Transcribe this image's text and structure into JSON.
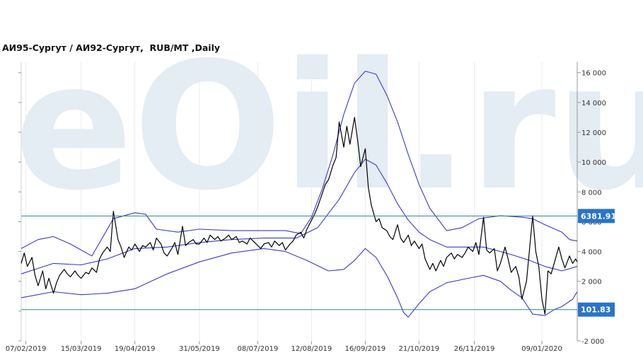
{
  "chart_data": {
    "type": "line",
    "title": "АИ95-Сургут / АИ92-Сургут,  RUB/MT ,Daily",
    "watermark": "eOil.ru",
    "x_ticks": [
      "07/02/2019",
      "15/03/2019",
      "19/04/2019",
      "31/05/2019",
      "08/07/2019",
      "12/08/2019",
      "16/09/2019",
      "21/10/2019",
      "26/11/2019",
      "09/01/2020"
    ],
    "y_ticks": [
      16000,
      14000,
      12000,
      10000,
      8000,
      6000,
      4000,
      2000,
      0,
      -2000
    ],
    "y_tick_labels": [
      "16 000",
      "14 000",
      "12 000",
      "10 000",
      "8 000",
      "6 000",
      "4 000",
      "2 000",
      "0",
      "-2 000"
    ],
    "ylim": [
      -2000,
      16700
    ],
    "x_range": [
      "2019-02-04",
      "2020-02-01"
    ],
    "reference_lines": [
      {
        "label": "6381.91",
        "value": 6381.91
      },
      {
        "label": "101.83",
        "value": 101.83
      }
    ],
    "colors": {
      "spread": "#000000",
      "bands": "#3a3acc",
      "reference": "#2a8a84",
      "badge": "#2a74c8",
      "watermark": "#e4ecf4"
    },
    "series": [
      {
        "key": "spread",
        "points": [
          [
            "2019-02-04",
            3200
          ],
          [
            "2019-02-06",
            3900
          ],
          [
            "2019-02-08",
            3000
          ],
          [
            "2019-02-11",
            3600
          ],
          [
            "2019-02-13",
            2400
          ],
          [
            "2019-02-15",
            1700
          ],
          [
            "2019-02-18",
            2700
          ],
          [
            "2019-02-20",
            1500
          ],
          [
            "2019-02-22",
            2200
          ],
          [
            "2019-02-25",
            1200
          ],
          [
            "2019-02-27",
            1900
          ],
          [
            "2019-03-01",
            2400
          ],
          [
            "2019-03-04",
            2800
          ],
          [
            "2019-03-06",
            2500
          ],
          [
            "2019-03-08",
            2300
          ],
          [
            "2019-03-11",
            2700
          ],
          [
            "2019-03-13",
            2400
          ],
          [
            "2019-03-15",
            2200
          ],
          [
            "2019-03-18",
            2600
          ],
          [
            "2019-03-20",
            2500
          ],
          [
            "2019-03-22",
            2900
          ],
          [
            "2019-03-25",
            2600
          ],
          [
            "2019-03-27",
            3500
          ],
          [
            "2019-03-29",
            3900
          ],
          [
            "2019-04-01",
            4300
          ],
          [
            "2019-04-03",
            4000
          ],
          [
            "2019-04-05",
            6700
          ],
          [
            "2019-04-08",
            4800
          ],
          [
            "2019-04-10",
            4300
          ],
          [
            "2019-04-12",
            3600
          ],
          [
            "2019-04-15",
            4300
          ],
          [
            "2019-04-17",
            4100
          ],
          [
            "2019-04-19",
            4500
          ],
          [
            "2019-04-22",
            4000
          ],
          [
            "2019-04-24",
            4400
          ],
          [
            "2019-04-26",
            4300
          ],
          [
            "2019-04-29",
            4600
          ],
          [
            "2019-05-01",
            4100
          ],
          [
            "2019-05-03",
            4900
          ],
          [
            "2019-05-06",
            4500
          ],
          [
            "2019-05-08",
            3900
          ],
          [
            "2019-05-10",
            3700
          ],
          [
            "2019-05-13",
            4200
          ],
          [
            "2019-05-15",
            4600
          ],
          [
            "2019-05-17",
            3800
          ],
          [
            "2019-05-20",
            5700
          ],
          [
            "2019-05-22",
            4400
          ],
          [
            "2019-05-24",
            4600
          ],
          [
            "2019-05-27",
            4800
          ],
          [
            "2019-05-29",
            4500
          ],
          [
            "2019-05-31",
            4500
          ],
          [
            "2019-06-03",
            4900
          ],
          [
            "2019-06-05",
            4600
          ],
          [
            "2019-06-07",
            5100
          ],
          [
            "2019-06-10",
            4800
          ],
          [
            "2019-06-12",
            5000
          ],
          [
            "2019-06-14",
            4700
          ],
          [
            "2019-06-17",
            4900
          ],
          [
            "2019-06-19",
            5100
          ],
          [
            "2019-06-21",
            4800
          ],
          [
            "2019-06-24",
            5000
          ],
          [
            "2019-06-26",
            4600
          ],
          [
            "2019-06-28",
            4700
          ],
          [
            "2019-07-01",
            4500
          ],
          [
            "2019-07-03",
            4900
          ],
          [
            "2019-07-05",
            4700
          ],
          [
            "2019-07-08",
            4400
          ],
          [
            "2019-07-10",
            4200
          ],
          [
            "2019-07-12",
            4500
          ],
          [
            "2019-07-15",
            4600
          ],
          [
            "2019-07-17",
            4300
          ],
          [
            "2019-07-19",
            4700
          ],
          [
            "2019-07-22",
            4400
          ],
          [
            "2019-07-24",
            4600
          ],
          [
            "2019-07-26",
            4100
          ],
          [
            "2019-07-29",
            4500
          ],
          [
            "2019-07-31",
            4700
          ],
          [
            "2019-08-02",
            5100
          ],
          [
            "2019-08-05",
            5300
          ],
          [
            "2019-08-07",
            4900
          ],
          [
            "2019-08-09",
            5500
          ],
          [
            "2019-08-12",
            6100
          ],
          [
            "2019-08-14",
            6500
          ],
          [
            "2019-08-16",
            7000
          ],
          [
            "2019-08-19",
            7900
          ],
          [
            "2019-08-21",
            8500
          ],
          [
            "2019-08-23",
            8800
          ],
          [
            "2019-08-26",
            9800
          ],
          [
            "2019-08-28",
            10300
          ],
          [
            "2019-08-30",
            12700
          ],
          [
            "2019-09-02",
            11000
          ],
          [
            "2019-09-04",
            12400
          ],
          [
            "2019-09-06",
            11200
          ],
          [
            "2019-09-09",
            13000
          ],
          [
            "2019-09-11",
            11500
          ],
          [
            "2019-09-13",
            9700
          ],
          [
            "2019-09-16",
            10900
          ],
          [
            "2019-09-18",
            8300
          ],
          [
            "2019-09-20",
            7100
          ],
          [
            "2019-09-23",
            6000
          ],
          [
            "2019-09-25",
            6200
          ],
          [
            "2019-09-27",
            5600
          ],
          [
            "2019-09-30",
            5400
          ],
          [
            "2019-10-02",
            5000
          ],
          [
            "2019-10-04",
            4800
          ],
          [
            "2019-10-07",
            5800
          ],
          [
            "2019-10-09",
            4900
          ],
          [
            "2019-10-11",
            4600
          ],
          [
            "2019-10-14",
            5100
          ],
          [
            "2019-10-16",
            4400
          ],
          [
            "2019-10-18",
            4700
          ],
          [
            "2019-10-21",
            4200
          ],
          [
            "2019-10-23",
            4500
          ],
          [
            "2019-10-25",
            3500
          ],
          [
            "2019-10-28",
            2800
          ],
          [
            "2019-10-30",
            3200
          ],
          [
            "2019-11-01",
            2700
          ],
          [
            "2019-11-04",
            3400
          ],
          [
            "2019-11-06",
            3000
          ],
          [
            "2019-11-08",
            3600
          ],
          [
            "2019-11-11",
            3900
          ],
          [
            "2019-11-13",
            3500
          ],
          [
            "2019-11-15",
            3800
          ],
          [
            "2019-11-18",
            3600
          ],
          [
            "2019-11-20",
            3900
          ],
          [
            "2019-11-22",
            4300
          ],
          [
            "2019-11-25",
            4000
          ],
          [
            "2019-11-27",
            4600
          ],
          [
            "2019-11-29",
            3800
          ],
          [
            "2019-12-02",
            6300
          ],
          [
            "2019-12-04",
            4100
          ],
          [
            "2019-12-06",
            3900
          ],
          [
            "2019-12-09",
            4200
          ],
          [
            "2019-12-11",
            2700
          ],
          [
            "2019-12-13",
            3200
          ],
          [
            "2019-12-16",
            4300
          ],
          [
            "2019-12-18",
            3500
          ],
          [
            "2019-12-20",
            2600
          ],
          [
            "2019-12-23",
            3000
          ],
          [
            "2019-12-25",
            2300
          ],
          [
            "2019-12-27",
            800
          ],
          [
            "2019-12-30",
            2000
          ],
          [
            "2020-01-01",
            4200
          ],
          [
            "2020-01-03",
            6400
          ],
          [
            "2020-01-05",
            4000
          ],
          [
            "2020-01-07",
            3000
          ],
          [
            "2020-01-09",
            800
          ],
          [
            "2020-01-11",
            -200
          ],
          [
            "2020-01-13",
            2700
          ],
          [
            "2020-01-15",
            2500
          ],
          [
            "2020-01-17",
            3200
          ],
          [
            "2020-01-20",
            4300
          ],
          [
            "2020-01-22",
            3500
          ],
          [
            "2020-01-24",
            2900
          ],
          [
            "2020-01-27",
            3700
          ],
          [
            "2020-01-29",
            3200
          ],
          [
            "2020-01-31",
            3500
          ],
          [
            "2020-02-01",
            3300
          ]
        ]
      },
      {
        "key": "middle-band",
        "points": [
          [
            "2019-02-04",
            2500
          ],
          [
            "2019-02-25",
            3200
          ],
          [
            "2019-03-15",
            3100
          ],
          [
            "2019-04-01",
            3500
          ],
          [
            "2019-04-19",
            4200
          ],
          [
            "2019-05-10",
            4300
          ],
          [
            "2019-05-31",
            4600
          ],
          [
            "2019-06-21",
            4800
          ],
          [
            "2019-07-12",
            4900
          ],
          [
            "2019-08-02",
            4900
          ],
          [
            "2019-08-16",
            5600
          ],
          [
            "2019-08-30",
            7500
          ],
          [
            "2019-09-09",
            9300
          ],
          [
            "2019-09-16",
            10200
          ],
          [
            "2019-09-23",
            9800
          ],
          [
            "2019-09-30",
            8600
          ],
          [
            "2019-10-07",
            7200
          ],
          [
            "2019-10-14",
            6100
          ],
          [
            "2019-10-21",
            5300
          ],
          [
            "2019-10-28",
            4800
          ],
          [
            "2019-11-08",
            4300
          ],
          [
            "2019-11-22",
            4300
          ],
          [
            "2019-12-02",
            4300
          ],
          [
            "2019-12-13",
            4000
          ],
          [
            "2019-12-23",
            3700
          ],
          [
            "2020-01-01",
            3400
          ],
          [
            "2020-01-11",
            3000
          ],
          [
            "2020-01-22",
            2700
          ],
          [
            "2020-02-01",
            3000
          ]
        ]
      },
      {
        "key": "upper-band",
        "points": [
          [
            "2019-02-04",
            4200
          ],
          [
            "2019-02-15",
            4800
          ],
          [
            "2019-02-25",
            5000
          ],
          [
            "2019-03-08",
            4500
          ],
          [
            "2019-03-22",
            3700
          ],
          [
            "2019-04-05",
            6200
          ],
          [
            "2019-04-19",
            6600
          ],
          [
            "2019-04-26",
            6500
          ],
          [
            "2019-05-03",
            5500
          ],
          [
            "2019-05-17",
            5300
          ],
          [
            "2019-05-31",
            5500
          ],
          [
            "2019-06-21",
            5400
          ],
          [
            "2019-07-12",
            5400
          ],
          [
            "2019-07-26",
            5400
          ],
          [
            "2019-08-05",
            5200
          ],
          [
            "2019-08-12",
            6300
          ],
          [
            "2019-08-19",
            8200
          ],
          [
            "2019-08-26",
            10500
          ],
          [
            "2019-09-02",
            13200
          ],
          [
            "2019-09-09",
            15300
          ],
          [
            "2019-09-16",
            16100
          ],
          [
            "2019-09-23",
            15900
          ],
          [
            "2019-09-30",
            14500
          ],
          [
            "2019-10-07",
            12700
          ],
          [
            "2019-10-14",
            10500
          ],
          [
            "2019-10-21",
            8500
          ],
          [
            "2019-10-28",
            6900
          ],
          [
            "2019-11-08",
            5400
          ],
          [
            "2019-11-18",
            5600
          ],
          [
            "2019-11-29",
            6200
          ],
          [
            "2019-12-13",
            6400
          ],
          [
            "2019-12-27",
            6300
          ],
          [
            "2020-01-03",
            6200
          ],
          [
            "2020-01-11",
            5800
          ],
          [
            "2020-01-22",
            5300
          ],
          [
            "2020-01-27",
            4800
          ],
          [
            "2020-02-01",
            4700
          ]
        ]
      },
      {
        "key": "lower-band",
        "points": [
          [
            "2019-02-04",
            900
          ],
          [
            "2019-02-25",
            1300
          ],
          [
            "2019-03-15",
            1100
          ],
          [
            "2019-04-01",
            1200
          ],
          [
            "2019-04-19",
            1500
          ],
          [
            "2019-05-10",
            2500
          ],
          [
            "2019-05-31",
            3300
          ],
          [
            "2019-06-21",
            3900
          ],
          [
            "2019-07-12",
            4200
          ],
          [
            "2019-07-26",
            4000
          ],
          [
            "2019-08-09",
            3400
          ],
          [
            "2019-08-23",
            2700
          ],
          [
            "2019-09-02",
            2800
          ],
          [
            "2019-09-09",
            3400
          ],
          [
            "2019-09-16",
            4200
          ],
          [
            "2019-09-23",
            3600
          ],
          [
            "2019-09-30",
            2400
          ],
          [
            "2019-10-07",
            900
          ],
          [
            "2019-10-11",
            -100
          ],
          [
            "2019-10-14",
            -400
          ],
          [
            "2019-10-21",
            500
          ],
          [
            "2019-10-28",
            1300
          ],
          [
            "2019-11-08",
            1900
          ],
          [
            "2019-11-22",
            2200
          ],
          [
            "2019-12-02",
            2400
          ],
          [
            "2019-12-13",
            2000
          ],
          [
            "2019-12-20",
            1400
          ],
          [
            "2019-12-27",
            900
          ],
          [
            "2020-01-03",
            -200
          ],
          [
            "2020-01-11",
            -300
          ],
          [
            "2020-01-17",
            100
          ],
          [
            "2020-01-22",
            300
          ],
          [
            "2020-01-29",
            800
          ],
          [
            "2020-02-01",
            1300
          ]
        ]
      }
    ]
  }
}
